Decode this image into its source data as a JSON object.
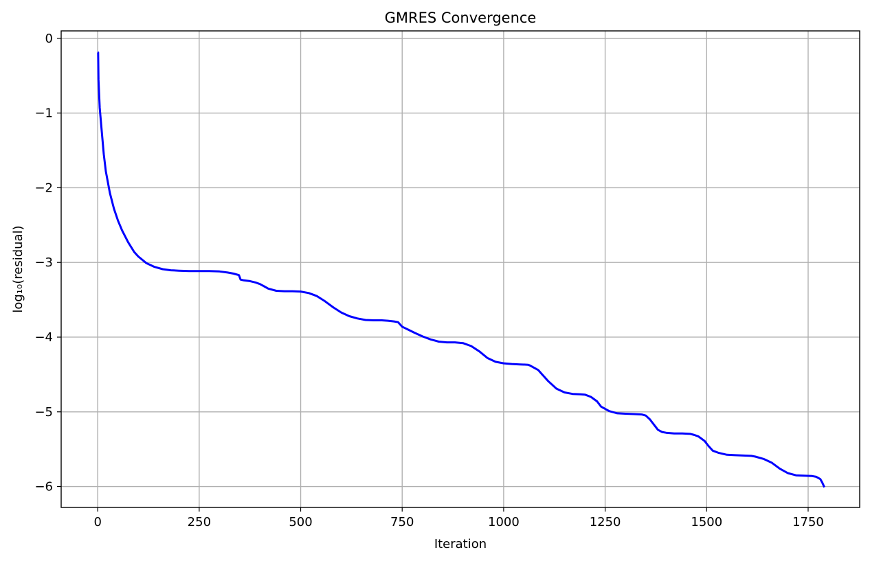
{
  "chart_data": {
    "type": "line",
    "title": "GMRES Convergence",
    "xlabel": "Iteration",
    "ylabel": "log₁₀(residual)",
    "xlim": [
      -90,
      1877
    ],
    "ylim": [
      -6.28,
      0.1
    ],
    "xticks": [
      0,
      250,
      500,
      750,
      1000,
      1250,
      1500,
      1750
    ],
    "yticks": [
      0,
      -1,
      -2,
      -3,
      -4,
      -5,
      -6
    ],
    "xtick_labels": [
      "0",
      "250",
      "500",
      "750",
      "1000",
      "1250",
      "1500",
      "1750"
    ],
    "ytick_labels": [
      "0",
      "−1",
      "−2",
      "−3",
      "−4",
      "−5",
      "−6"
    ],
    "grid": true,
    "series": [
      {
        "color": "#0000ff",
        "x": [
          0,
          1,
          2,
          5,
          10,
          15,
          20,
          30,
          40,
          50,
          60,
          75,
          90,
          100,
          120,
          140,
          160,
          180,
          200,
          225,
          250,
          275,
          300,
          320,
          335,
          348,
          352,
          360,
          375,
          390,
          400,
          410,
          420,
          440,
          460,
          480,
          500,
          520,
          540,
          560,
          580,
          600,
          620,
          640,
          660,
          680,
          700,
          715,
          730,
          740,
          750,
          765,
          780,
          800,
          820,
          840,
          860,
          880,
          900,
          920,
          940,
          960,
          980,
          1000,
          1020,
          1040,
          1060,
          1065,
          1075,
          1085,
          1095,
          1110,
          1130,
          1150,
          1170,
          1190,
          1200,
          1215,
          1230,
          1240,
          1260,
          1280,
          1300,
          1320,
          1340,
          1350,
          1360,
          1370,
          1380,
          1390,
          1400,
          1420,
          1440,
          1460,
          1470,
          1480,
          1495,
          1505,
          1515,
          1530,
          1550,
          1570,
          1590,
          1610,
          1620,
          1640,
          1660,
          1680,
          1700,
          1720,
          1740,
          1760,
          1770,
          1780,
          1785,
          1790
        ],
        "y": [
          -0.19,
          -0.19,
          -0.55,
          -0.93,
          -1.25,
          -1.55,
          -1.78,
          -2.07,
          -2.28,
          -2.44,
          -2.57,
          -2.73,
          -2.86,
          -2.92,
          -3.01,
          -3.06,
          -3.09,
          -3.105,
          -3.11,
          -3.115,
          -3.115,
          -3.115,
          -3.12,
          -3.135,
          -3.15,
          -3.17,
          -3.23,
          -3.24,
          -3.25,
          -3.27,
          -3.29,
          -3.32,
          -3.35,
          -3.38,
          -3.385,
          -3.385,
          -3.39,
          -3.41,
          -3.45,
          -3.52,
          -3.6,
          -3.67,
          -3.72,
          -3.75,
          -3.77,
          -3.775,
          -3.775,
          -3.78,
          -3.79,
          -3.8,
          -3.86,
          -3.9,
          -3.94,
          -3.99,
          -4.03,
          -4.06,
          -4.07,
          -4.07,
          -4.08,
          -4.12,
          -4.19,
          -4.28,
          -4.33,
          -4.35,
          -4.36,
          -4.365,
          -4.37,
          -4.38,
          -4.41,
          -4.44,
          -4.5,
          -4.59,
          -4.69,
          -4.74,
          -4.76,
          -4.765,
          -4.77,
          -4.8,
          -4.86,
          -4.93,
          -4.99,
          -5.02,
          -5.025,
          -5.03,
          -5.035,
          -5.05,
          -5.1,
          -5.17,
          -5.24,
          -5.27,
          -5.28,
          -5.29,
          -5.29,
          -5.295,
          -5.31,
          -5.33,
          -5.39,
          -5.46,
          -5.52,
          -5.55,
          -5.575,
          -5.58,
          -5.585,
          -5.59,
          -5.6,
          -5.63,
          -5.68,
          -5.76,
          -5.82,
          -5.85,
          -5.855,
          -5.86,
          -5.87,
          -5.9,
          -5.95,
          -6.01
        ]
      }
    ]
  }
}
